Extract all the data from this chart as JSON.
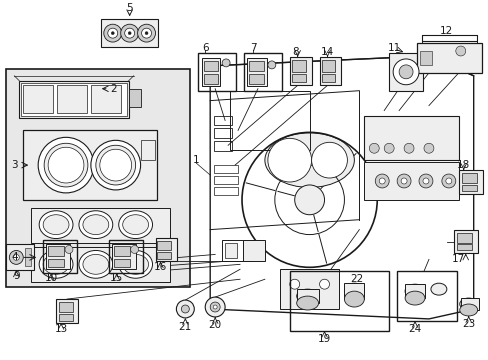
{
  "bg_color": "#ffffff",
  "line_color": "#1a1a1a",
  "fig_width": 4.89,
  "fig_height": 3.6,
  "dpi": 100,
  "gray_fill": "#d8d8d8",
  "light_gray": "#eeeeee",
  "mid_gray": "#cccccc"
}
